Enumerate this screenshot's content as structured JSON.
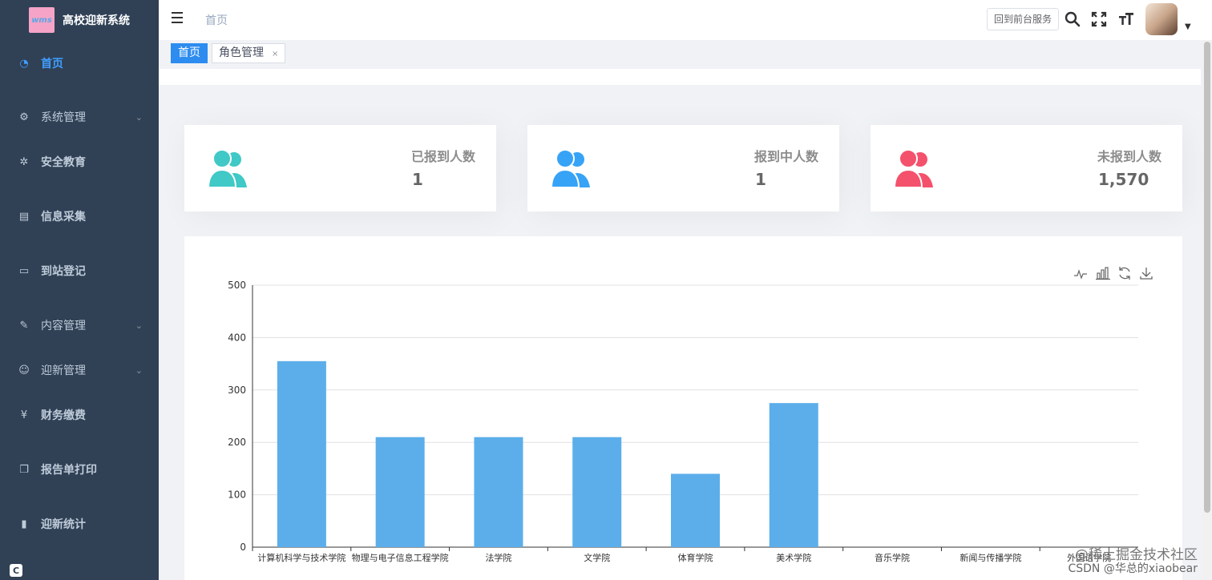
{
  "app": {
    "title": "高校迎新系统",
    "logo_text": "wms"
  },
  "sidebar": {
    "items": [
      {
        "label": "首页",
        "icon": "dashboard-icon",
        "glyph": "◔",
        "active": true,
        "expandable": false
      },
      {
        "label": "系统管理",
        "icon": "gear-icon",
        "glyph": "⚙",
        "active": false,
        "expandable": true
      },
      {
        "label": "安全教育",
        "icon": "bug-icon",
        "glyph": "✲",
        "active": false,
        "expandable": false
      },
      {
        "label": "信息采集",
        "icon": "document-icon",
        "glyph": "▤",
        "active": false,
        "expandable": false
      },
      {
        "label": "到站登记",
        "icon": "calendar-icon",
        "glyph": "▭",
        "active": false,
        "expandable": false
      },
      {
        "label": "内容管理",
        "icon": "edit-icon",
        "glyph": "✎",
        "active": false,
        "expandable": true
      },
      {
        "label": "迎新管理",
        "icon": "people-icon",
        "glyph": "☺",
        "active": false,
        "expandable": true
      },
      {
        "label": "财务缴费",
        "icon": "yen-icon",
        "glyph": "¥",
        "active": false,
        "expandable": false
      },
      {
        "label": "报告单打印",
        "icon": "copy-icon",
        "glyph": "❐",
        "active": false,
        "expandable": false
      },
      {
        "label": "迎新统计",
        "icon": "bar-chart-icon",
        "glyph": "▮",
        "active": false,
        "expandable": false
      }
    ],
    "collapse_glyph": "C"
  },
  "navbar": {
    "breadcrumb": "首页",
    "front_button": "回到前台服务",
    "search_icon": "search-icon",
    "fullscreen_icon": "fullscreen-icon",
    "size_icon": "font-size-icon"
  },
  "tags": [
    {
      "label": "首页",
      "active": true
    },
    {
      "label": "角色管理",
      "active": false,
      "closable": true
    }
  ],
  "cards": [
    {
      "title": "已报到人数",
      "value": "1",
      "color": "#40c9c6"
    },
    {
      "title": "报到中人数",
      "value": "1",
      "color": "#36a3f7"
    },
    {
      "title": "未报到人数",
      "value": "1,570",
      "color": "#f4516c"
    }
  ],
  "chart_data": {
    "type": "bar",
    "categories": [
      "计算机科学与技术学院",
      "物理与电子信息工程学院",
      "法学院",
      "文学院",
      "体育学院",
      "美术学院",
      "音乐学院",
      "新闻与传播学院",
      "外国语学院"
    ],
    "values": [
      355,
      210,
      210,
      210,
      140,
      275,
      0,
      0,
      0
    ],
    "y_ticks": [
      0,
      100,
      200,
      300,
      400,
      500
    ],
    "ylim": [
      0,
      500
    ],
    "bar_color": "#5baeea",
    "grid": true,
    "toolbox": [
      "line-chart-icon",
      "bar-chart-icon",
      "restore-icon",
      "download-icon"
    ]
  },
  "watermark": {
    "line1": "@稀土掘金技术社区",
    "line2": "CSDN @华总的xiaobear"
  }
}
